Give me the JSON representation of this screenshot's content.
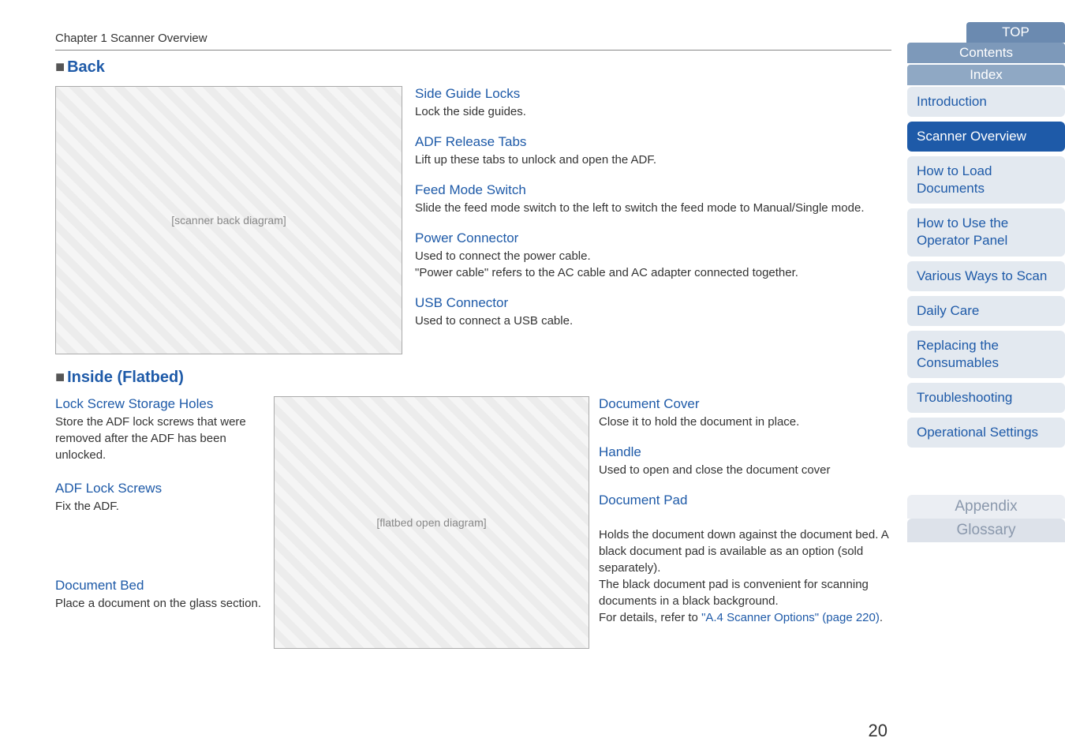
{
  "chapter": "Chapter 1 Scanner Overview",
  "page_number": "20",
  "section_back": {
    "title": "Back",
    "callouts": [
      {
        "label": "Side Guide Locks",
        "desc": "Lock the side guides."
      },
      {
        "label": "ADF Release Tabs",
        "desc": "Lift up these tabs to unlock and open the ADF."
      },
      {
        "label": "Feed Mode Switch",
        "desc": "Slide the feed mode switch to the left to switch the feed mode to Manual/Single mode."
      },
      {
        "label": "Power Connector",
        "desc": "Used to connect the power cable.\n\"Power cable\" refers to the AC cable and AC adapter connected together."
      },
      {
        "label": "USB Connector",
        "desc": "Used to connect a USB cable."
      }
    ]
  },
  "section_inside": {
    "title": "Inside (Flatbed)",
    "left": [
      {
        "label": "Lock Screw Storage Holes",
        "desc": "Store the ADF lock screws that were removed after the ADF has been unlocked."
      },
      {
        "label": "ADF Lock Screws",
        "desc": "Fix the ADF."
      },
      {
        "label": "Document Bed",
        "desc": "Place a document on the glass section."
      }
    ],
    "right": [
      {
        "label": "Document Cover",
        "desc": "Close it to hold the document in place."
      },
      {
        "label": "Handle",
        "desc": "Used to open and close the document cover"
      },
      {
        "label": "Document Pad",
        "desc": "Holds the document down against the document bed. A black document pad is available as an option (sold separately).\nThe black document pad is convenient for scanning documents in a black background.\nFor details, refer to ",
        "link": "\"A.4 Scanner Options\" (page 220)",
        "suffix": "."
      }
    ]
  },
  "sidebar": {
    "top": "TOP",
    "contents": "Contents",
    "index": "Index",
    "items": [
      {
        "label": "Introduction",
        "active": false
      },
      {
        "label": "Scanner Overview",
        "active": true
      },
      {
        "label": "How to Load Documents",
        "active": false
      },
      {
        "label": "How to Use the Operator Panel",
        "active": false
      },
      {
        "label": "Various Ways to Scan",
        "active": false
      },
      {
        "label": "Daily Care",
        "active": false
      },
      {
        "label": "Replacing the Consumables",
        "active": false
      },
      {
        "label": "Troubleshooting",
        "active": false
      },
      {
        "label": "Operational Settings",
        "active": false
      }
    ],
    "appendix": "Appendix",
    "glossary": "Glossary"
  },
  "colors": {
    "heading_blue": "#1e5aa8",
    "sidebar_active_bg": "#1e5aa8",
    "sidebar_inactive_bg": "#e3e9f0",
    "top_tab_bg": "#6b8ab0",
    "contents_tab_bg": "#7d99ba",
    "index_tab_bg": "#8fa8c4"
  }
}
